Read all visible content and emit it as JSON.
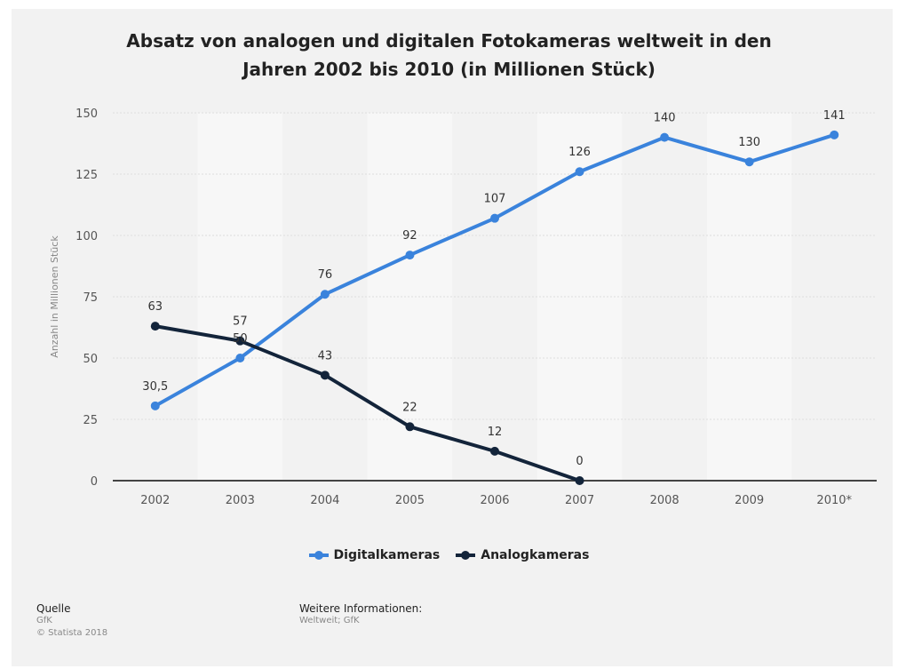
{
  "chart_data": {
    "type": "line",
    "title_line1": "Absatz von analogen und digitalen Fotokameras weltweit in den",
    "title_line2": "Jahren 2002 bis 2010 (in Millionen Stück)",
    "ylabel": "Anzahl in Millionen Stück",
    "xlabel": "",
    "categories": [
      "2002",
      "2003",
      "2004",
      "2005",
      "2006",
      "2007",
      "2008",
      "2009",
      "2010*"
    ],
    "y_ticks": [
      0,
      25,
      50,
      75,
      100,
      125,
      150
    ],
    "ylim": [
      0,
      150
    ],
    "grid": true,
    "legend_position": "bottom",
    "series": [
      {
        "name": "Digitalkameras",
        "color": "#3a83dc",
        "values": [
          30.5,
          50,
          76,
          92,
          107,
          126,
          140,
          130,
          141
        ],
        "labels": [
          "30,5",
          "50",
          "76",
          "92",
          "107",
          "126",
          "140",
          "130",
          "141"
        ]
      },
      {
        "name": "Analogkameras",
        "color": "#13243a",
        "values": [
          63,
          57,
          43,
          22,
          12,
          0,
          null,
          null,
          null
        ],
        "labels": [
          "63",
          "57",
          "43",
          "22",
          "12",
          "0",
          null,
          null,
          null
        ]
      }
    ]
  },
  "colors": {
    "background": "#f2f2f2",
    "band": "#f7f7f7",
    "grid": "#dddddd",
    "axis": "#444444"
  },
  "source": {
    "heading": "Quelle",
    "name": "GfK",
    "copyright": "© Statista 2018"
  },
  "info": {
    "heading": "Weitere Informationen:",
    "text": "Weltweit; GfK"
  }
}
